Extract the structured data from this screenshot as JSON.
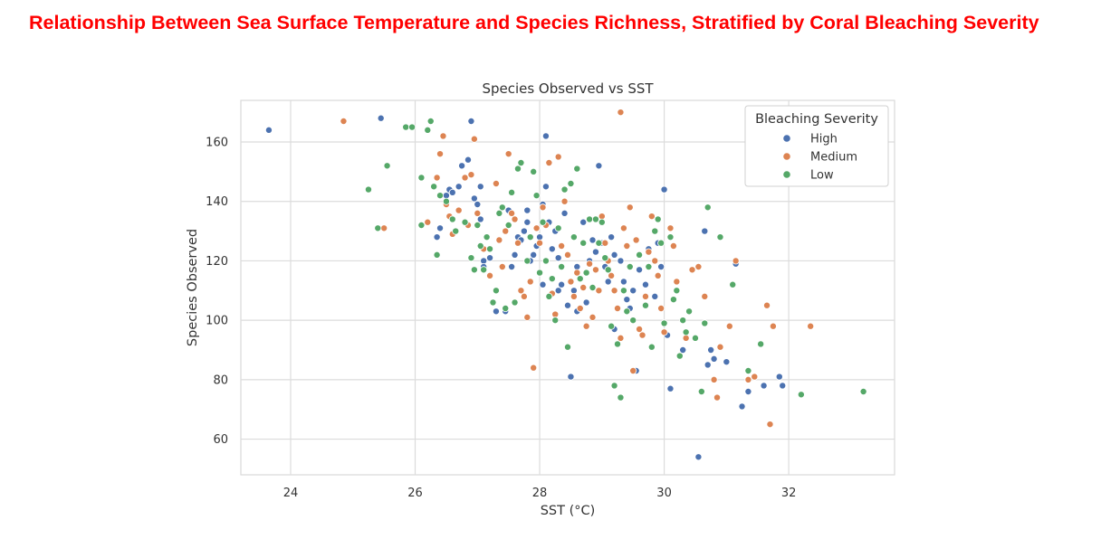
{
  "page": {
    "heading": "Relationship Between Sea Surface Temperature and Species Richness, Stratified by Coral Bleaching Severity"
  },
  "chart_data": {
    "type": "scatter",
    "title": "Species Observed vs SST",
    "xlabel": "SST (°C)",
    "ylabel": "Species Observed",
    "xlim": [
      23.2,
      33.7
    ],
    "ylim": [
      48,
      174
    ],
    "xticks": [
      24,
      26,
      28,
      30,
      32
    ],
    "yticks": [
      60,
      80,
      100,
      120,
      140,
      160
    ],
    "grid": true,
    "legend": {
      "title": "Bleaching Severity",
      "placement": "top-right"
    },
    "series": [
      {
        "name": "High",
        "color": "#4c72b0",
        "points": [
          [
            23.65,
            164
          ],
          [
            25.45,
            168
          ],
          [
            25.5,
            131
          ],
          [
            26.35,
            128
          ],
          [
            26.4,
            131
          ],
          [
            26.5,
            142
          ],
          [
            26.55,
            144
          ],
          [
            26.6,
            143
          ],
          [
            26.7,
            145
          ],
          [
            26.75,
            152
          ],
          [
            26.85,
            154
          ],
          [
            26.9,
            167
          ],
          [
            26.95,
            141
          ],
          [
            27.0,
            139
          ],
          [
            27.05,
            145
          ],
          [
            27.05,
            134
          ],
          [
            27.1,
            120
          ],
          [
            27.1,
            118
          ],
          [
            27.2,
            121
          ],
          [
            27.3,
            103
          ],
          [
            27.45,
            103
          ],
          [
            27.5,
            137
          ],
          [
            27.55,
            118
          ],
          [
            27.6,
            122
          ],
          [
            27.65,
            128
          ],
          [
            27.7,
            127
          ],
          [
            27.75,
            130
          ],
          [
            27.8,
            133
          ],
          [
            27.8,
            137
          ],
          [
            27.85,
            120
          ],
          [
            27.9,
            122
          ],
          [
            27.95,
            125
          ],
          [
            28.0,
            128
          ],
          [
            28.05,
            139
          ],
          [
            28.05,
            112
          ],
          [
            28.1,
            162
          ],
          [
            28.1,
            145
          ],
          [
            28.15,
            133
          ],
          [
            28.2,
            124
          ],
          [
            28.25,
            130
          ],
          [
            28.3,
            121
          ],
          [
            28.3,
            110
          ],
          [
            28.35,
            112
          ],
          [
            28.4,
            136
          ],
          [
            28.45,
            105
          ],
          [
            28.5,
            81
          ],
          [
            28.55,
            110
          ],
          [
            28.6,
            118
          ],
          [
            28.6,
            103
          ],
          [
            28.7,
            133
          ],
          [
            28.75,
            106
          ],
          [
            28.8,
            120
          ],
          [
            28.85,
            127
          ],
          [
            28.9,
            123
          ],
          [
            28.95,
            152
          ],
          [
            29.0,
            126
          ],
          [
            29.05,
            118
          ],
          [
            29.1,
            113
          ],
          [
            29.15,
            128
          ],
          [
            29.2,
            122
          ],
          [
            29.2,
            97
          ],
          [
            29.3,
            120
          ],
          [
            29.35,
            113
          ],
          [
            29.4,
            107
          ],
          [
            29.45,
            104
          ],
          [
            29.5,
            110
          ],
          [
            29.55,
            83
          ],
          [
            29.6,
            117
          ],
          [
            29.7,
            112
          ],
          [
            29.75,
            124
          ],
          [
            29.85,
            108
          ],
          [
            29.9,
            126
          ],
          [
            29.95,
            118
          ],
          [
            30.0,
            144
          ],
          [
            30.05,
            95
          ],
          [
            30.1,
            77
          ],
          [
            30.3,
            90
          ],
          [
            30.55,
            54
          ],
          [
            30.65,
            130
          ],
          [
            30.7,
            85
          ],
          [
            30.75,
            90
          ],
          [
            30.8,
            87
          ],
          [
            31.0,
            86
          ],
          [
            31.15,
            119
          ],
          [
            31.25,
            71
          ],
          [
            31.35,
            76
          ],
          [
            31.6,
            78
          ],
          [
            31.85,
            81
          ],
          [
            31.9,
            78
          ]
        ]
      },
      {
        "name": "Medium",
        "color": "#dd8452",
        "points": [
          [
            24.85,
            167
          ],
          [
            25.5,
            131
          ],
          [
            26.2,
            133
          ],
          [
            26.35,
            148
          ],
          [
            26.4,
            156
          ],
          [
            26.45,
            162
          ],
          [
            26.5,
            139
          ],
          [
            26.55,
            135
          ],
          [
            26.6,
            129
          ],
          [
            26.7,
            137
          ],
          [
            26.8,
            148
          ],
          [
            26.85,
            132
          ],
          [
            26.9,
            149
          ],
          [
            26.95,
            161
          ],
          [
            27.0,
            136
          ],
          [
            27.1,
            124
          ],
          [
            27.2,
            115
          ],
          [
            27.3,
            146
          ],
          [
            27.35,
            127
          ],
          [
            27.4,
            118
          ],
          [
            27.45,
            130
          ],
          [
            27.5,
            156
          ],
          [
            27.55,
            136
          ],
          [
            27.6,
            134
          ],
          [
            27.65,
            126
          ],
          [
            27.7,
            110
          ],
          [
            27.75,
            108
          ],
          [
            27.8,
            101
          ],
          [
            27.85,
            113
          ],
          [
            27.9,
            84
          ],
          [
            27.95,
            131
          ],
          [
            28.0,
            126
          ],
          [
            28.05,
            138
          ],
          [
            28.1,
            132
          ],
          [
            28.15,
            153
          ],
          [
            28.2,
            109
          ],
          [
            28.25,
            102
          ],
          [
            28.3,
            155
          ],
          [
            28.35,
            125
          ],
          [
            28.4,
            140
          ],
          [
            28.45,
            122
          ],
          [
            28.5,
            113
          ],
          [
            28.55,
            108
          ],
          [
            28.6,
            116
          ],
          [
            28.65,
            104
          ],
          [
            28.7,
            111
          ],
          [
            28.75,
            98
          ],
          [
            28.8,
            119
          ],
          [
            28.85,
            101
          ],
          [
            28.9,
            117
          ],
          [
            28.95,
            110
          ],
          [
            29.0,
            135
          ],
          [
            29.05,
            126
          ],
          [
            29.1,
            120
          ],
          [
            29.15,
            115
          ],
          [
            29.2,
            110
          ],
          [
            29.25,
            104
          ],
          [
            29.3,
            170
          ],
          [
            29.3,
            94
          ],
          [
            29.35,
            131
          ],
          [
            29.4,
            125
          ],
          [
            29.45,
            138
          ],
          [
            29.5,
            83
          ],
          [
            29.55,
            127
          ],
          [
            29.6,
            97
          ],
          [
            29.65,
            95
          ],
          [
            29.7,
            108
          ],
          [
            29.75,
            123
          ],
          [
            29.8,
            135
          ],
          [
            29.85,
            120
          ],
          [
            29.9,
            115
          ],
          [
            29.95,
            104
          ],
          [
            30.0,
            96
          ],
          [
            30.1,
            131
          ],
          [
            30.15,
            125
          ],
          [
            30.2,
            113
          ],
          [
            30.35,
            94
          ],
          [
            30.45,
            117
          ],
          [
            30.55,
            118
          ],
          [
            30.65,
            108
          ],
          [
            30.8,
            80
          ],
          [
            30.85,
            74
          ],
          [
            30.9,
            91
          ],
          [
            31.05,
            98
          ],
          [
            31.15,
            120
          ],
          [
            31.35,
            80
          ],
          [
            31.45,
            81
          ],
          [
            31.65,
            105
          ],
          [
            31.75,
            98
          ],
          [
            31.7,
            65
          ],
          [
            32.35,
            98
          ]
        ]
      },
      {
        "name": "Low",
        "color": "#55a868",
        "points": [
          [
            25.25,
            144
          ],
          [
            25.4,
            131
          ],
          [
            25.55,
            152
          ],
          [
            25.85,
            165
          ],
          [
            25.95,
            165
          ],
          [
            26.1,
            148
          ],
          [
            26.1,
            132
          ],
          [
            26.2,
            164
          ],
          [
            26.25,
            167
          ],
          [
            26.3,
            145
          ],
          [
            26.35,
            122
          ],
          [
            26.4,
            142
          ],
          [
            26.5,
            140
          ],
          [
            26.6,
            134
          ],
          [
            26.65,
            130
          ],
          [
            26.8,
            133
          ],
          [
            26.9,
            121
          ],
          [
            26.95,
            117
          ],
          [
            27.0,
            132
          ],
          [
            27.05,
            125
          ],
          [
            27.1,
            117
          ],
          [
            27.15,
            128
          ],
          [
            27.2,
            124
          ],
          [
            27.25,
            106
          ],
          [
            27.3,
            110
          ],
          [
            27.35,
            136
          ],
          [
            27.4,
            138
          ],
          [
            27.45,
            104
          ],
          [
            27.5,
            132
          ],
          [
            27.55,
            143
          ],
          [
            27.6,
            106
          ],
          [
            27.65,
            151
          ],
          [
            27.7,
            153
          ],
          [
            27.8,
            120
          ],
          [
            27.85,
            128
          ],
          [
            27.9,
            150
          ],
          [
            27.95,
            142
          ],
          [
            28.0,
            116
          ],
          [
            28.05,
            133
          ],
          [
            28.1,
            120
          ],
          [
            28.15,
            108
          ],
          [
            28.2,
            114
          ],
          [
            28.25,
            100
          ],
          [
            28.3,
            131
          ],
          [
            28.35,
            118
          ],
          [
            28.4,
            144
          ],
          [
            28.45,
            91
          ],
          [
            28.5,
            146
          ],
          [
            28.55,
            128
          ],
          [
            28.6,
            151
          ],
          [
            28.65,
            114
          ],
          [
            28.7,
            126
          ],
          [
            28.75,
            116
          ],
          [
            28.8,
            134
          ],
          [
            28.85,
            111
          ],
          [
            28.9,
            134
          ],
          [
            28.95,
            126
          ],
          [
            29.0,
            133
          ],
          [
            29.05,
            121
          ],
          [
            29.1,
            117
          ],
          [
            29.15,
            98
          ],
          [
            29.2,
            78
          ],
          [
            29.25,
            92
          ],
          [
            29.3,
            74
          ],
          [
            29.35,
            110
          ],
          [
            29.4,
            103
          ],
          [
            29.45,
            118
          ],
          [
            29.5,
            100
          ],
          [
            29.6,
            122
          ],
          [
            29.7,
            105
          ],
          [
            29.75,
            118
          ],
          [
            29.8,
            91
          ],
          [
            29.85,
            130
          ],
          [
            29.9,
            134
          ],
          [
            29.95,
            126
          ],
          [
            30.0,
            99
          ],
          [
            30.1,
            128
          ],
          [
            30.15,
            107
          ],
          [
            30.2,
            110
          ],
          [
            30.25,
            88
          ],
          [
            30.3,
            100
          ],
          [
            30.35,
            96
          ],
          [
            30.4,
            103
          ],
          [
            30.5,
            94
          ],
          [
            30.6,
            76
          ],
          [
            30.65,
            99
          ],
          [
            30.7,
            138
          ],
          [
            30.9,
            128
          ],
          [
            31.1,
            112
          ],
          [
            31.35,
            83
          ],
          [
            31.55,
            92
          ],
          [
            32.2,
            75
          ],
          [
            33.2,
            76
          ]
        ]
      }
    ]
  }
}
